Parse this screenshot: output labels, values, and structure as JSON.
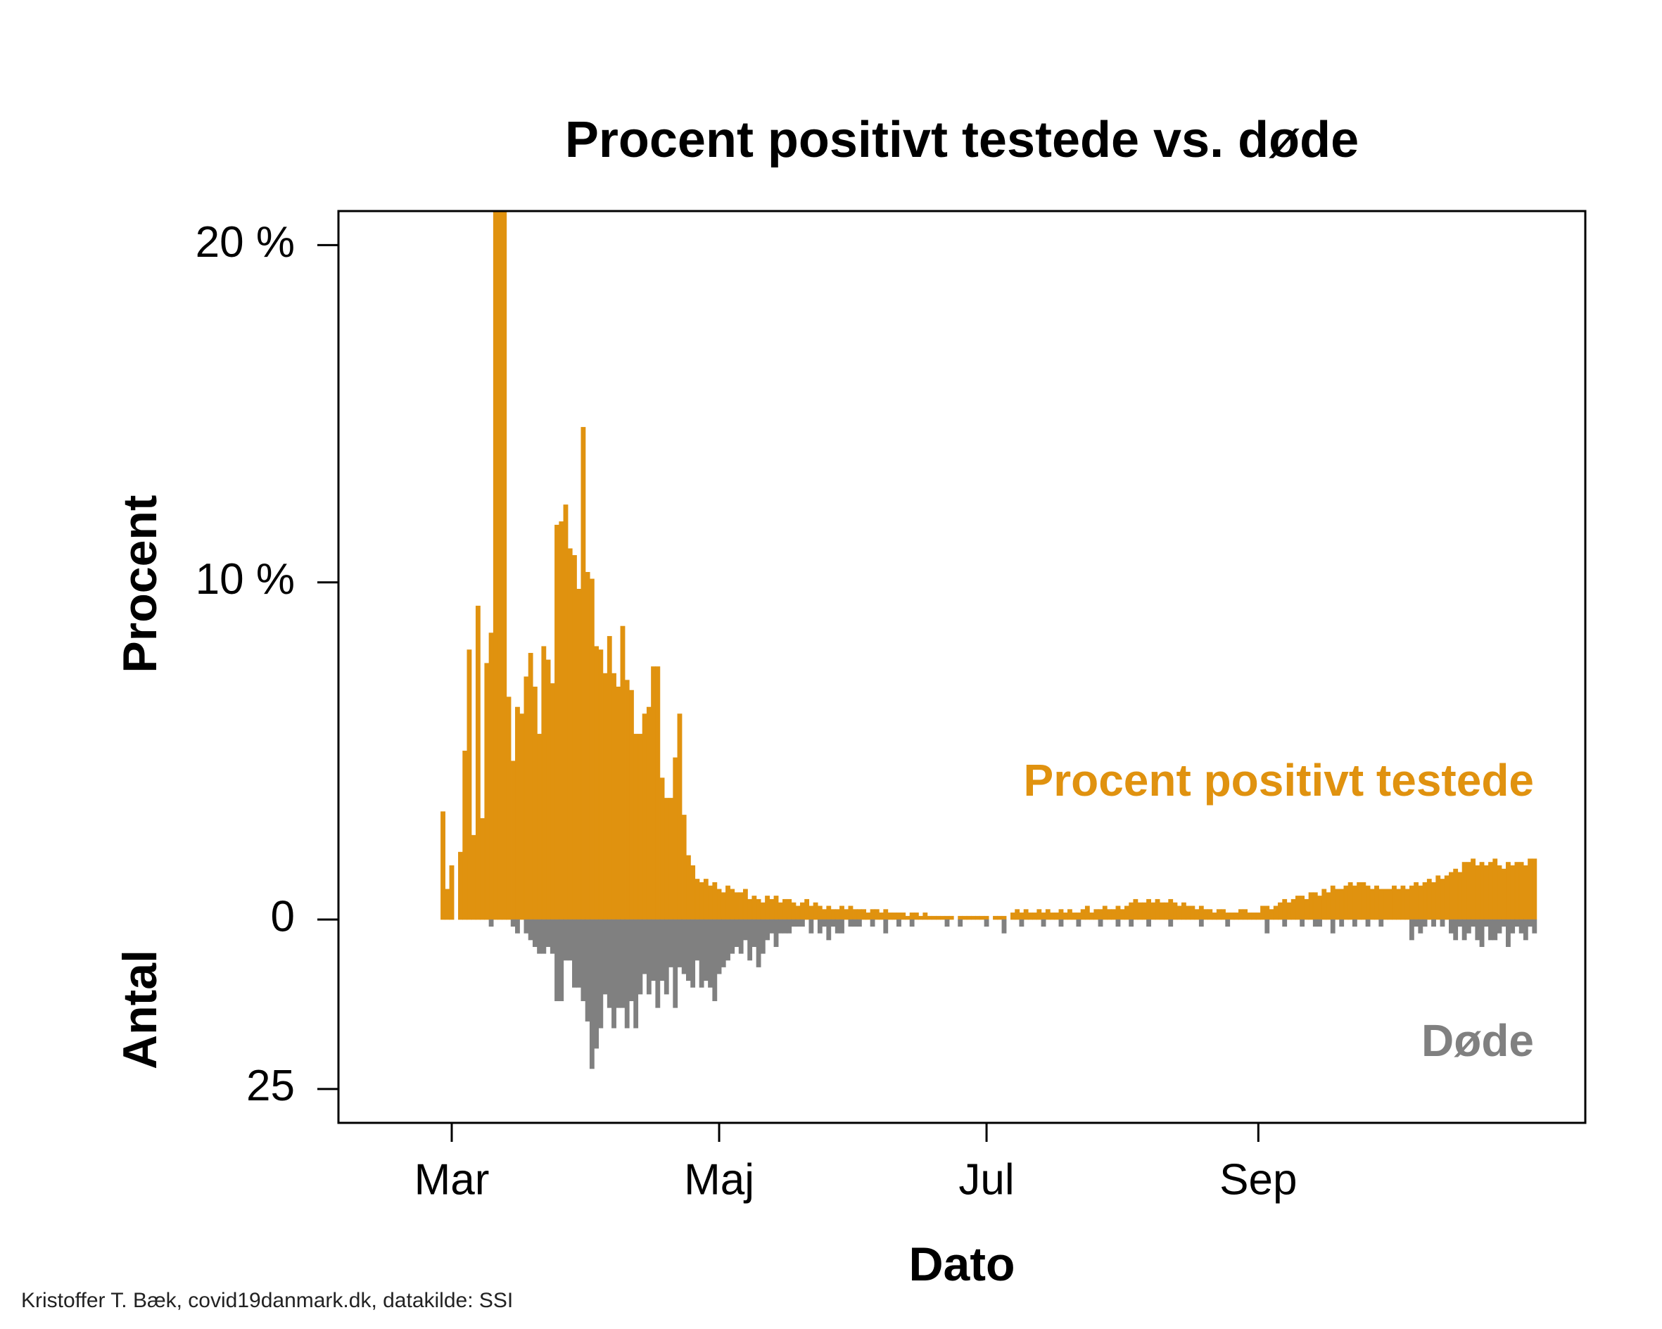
{
  "chart_data": {
    "type": "diverging-bar",
    "title": "Procent positivt testede vs. døde",
    "x_label": "Dato",
    "y_label": "Procent",
    "y2_label": "Antal",
    "source": "Kristoffer T. Bæk, covid19danmark.dk, datakilde: SSI",
    "categories": [
      null,
      null,
      "Mar",
      null,
      null,
      null,
      null,
      null,
      null,
      null,
      null,
      null,
      null,
      null,
      null,
      null,
      null,
      null,
      null,
      null,
      null,
      null,
      null,
      null,
      null,
      null,
      null,
      null,
      null,
      null,
      null,
      null,
      null,
      null,
      null,
      null,
      null,
      null,
      null,
      null,
      null,
      null,
      null,
      null,
      null,
      null,
      null,
      null,
      null,
      null,
      null,
      null,
      null,
      null,
      null,
      null,
      null,
      null,
      null,
      null,
      null,
      null,
      null,
      "Maj",
      null,
      null,
      null,
      null,
      null,
      null,
      null,
      null,
      null,
      null,
      null,
      null,
      null,
      null,
      null,
      null,
      null,
      null,
      null,
      null,
      null,
      null,
      null,
      null,
      null,
      null,
      null,
      null,
      null,
      null,
      null,
      null,
      null,
      null,
      null,
      null,
      null,
      null,
      null,
      null,
      null,
      null,
      null,
      null,
      null,
      null,
      null,
      null,
      null,
      null,
      null,
      null,
      null,
      null,
      null,
      null,
      null,
      null,
      null,
      null,
      "Jul",
      null,
      null,
      null,
      null,
      null,
      null,
      null,
      null,
      null,
      null,
      null,
      null,
      null,
      null,
      null,
      null,
      null,
      null,
      null,
      null,
      null,
      null,
      null,
      null,
      null,
      null,
      null,
      null,
      null,
      null,
      null,
      null,
      null,
      null,
      null,
      null,
      null,
      null,
      null,
      null,
      null,
      null,
      null,
      null,
      null,
      null,
      null,
      null,
      null,
      null,
      null,
      null,
      null,
      null,
      null,
      null,
      null,
      null,
      null,
      null,
      null,
      "Sep",
      null,
      null,
      null,
      null,
      null,
      null,
      null,
      null,
      null,
      null,
      null,
      null,
      null,
      null,
      null,
      null,
      null,
      null,
      null,
      null,
      null,
      null,
      null,
      null,
      null,
      null,
      null,
      null,
      null,
      null,
      null,
      null,
      null,
      null,
      null,
      null,
      null,
      null,
      null,
      null,
      null,
      null,
      null,
      null,
      null,
      null,
      null,
      null,
      null,
      null,
      null,
      null,
      null,
      null,
      null,
      null,
      null,
      null,
      null,
      null,
      null,
      null,
      null
    ],
    "series": [
      {
        "name": "Procent positivt testede",
        "color": "#e0920f",
        "values": [
          3.2,
          0.9,
          1.6,
          0,
          2.0,
          5.0,
          8.0,
          2.5,
          9.3,
          3.0,
          7.6,
          8.5,
          23,
          30,
          25,
          6.6,
          4.7,
          6.3,
          6.1,
          7.2,
          7.9,
          6.9,
          5.5,
          8.1,
          7.7,
          7.0,
          11.7,
          11.8,
          12.3,
          11.0,
          10.8,
          9.8,
          14.6,
          10.3,
          10.1,
          8.1,
          8.0,
          7.3,
          8.4,
          7.3,
          6.9,
          8.7,
          7.1,
          6.8,
          5.5,
          5.5,
          6.1,
          6.3,
          7.5,
          7.5,
          4.2,
          3.6,
          3.6,
          4.8,
          6.1,
          3.1,
          1.9,
          1.6,
          1.2,
          1.1,
          1.2,
          1.0,
          1.1,
          0.9,
          0.8,
          1.0,
          0.9,
          0.8,
          0.8,
          0.9,
          0.6,
          0.7,
          0.6,
          0.5,
          0.7,
          0.6,
          0.7,
          0.5,
          0.6,
          0.6,
          0.5,
          0.4,
          0.5,
          0.6,
          0.4,
          0.5,
          0.4,
          0.3,
          0.4,
          0.3,
          0.3,
          0.4,
          0.3,
          0.4,
          0.3,
          0.3,
          0.3,
          0.2,
          0.3,
          0.3,
          0.2,
          0.3,
          0.2,
          0.2,
          0.2,
          0.2,
          0.1,
          0.2,
          0.2,
          0.1,
          0.2,
          0.1,
          0.1,
          0.1,
          0.1,
          0.1,
          0.1,
          0.0,
          0.1,
          0.1,
          0.1,
          0.1,
          0.1,
          0.1,
          0.1,
          0.0,
          0.1,
          0.1,
          0.1,
          0.0,
          0.2,
          0.3,
          0.2,
          0.3,
          0.2,
          0.2,
          0.3,
          0.2,
          0.3,
          0.2,
          0.2,
          0.3,
          0.2,
          0.3,
          0.2,
          0.2,
          0.3,
          0.4,
          0.2,
          0.3,
          0.3,
          0.4,
          0.3,
          0.3,
          0.4,
          0.3,
          0.4,
          0.5,
          0.6,
          0.5,
          0.5,
          0.6,
          0.5,
          0.6,
          0.5,
          0.5,
          0.6,
          0.5,
          0.4,
          0.5,
          0.4,
          0.4,
          0.3,
          0.4,
          0.3,
          0.3,
          0.2,
          0.3,
          0.3,
          0.2,
          0.2,
          0.2,
          0.3,
          0.3,
          0.2,
          0.2,
          0.2,
          0.4,
          0.4,
          0.3,
          0.4,
          0.5,
          0.6,
          0.5,
          0.6,
          0.7,
          0.7,
          0.6,
          0.8,
          0.8,
          0.7,
          0.9,
          0.8,
          1.0,
          0.9,
          0.9,
          1.0,
          1.1,
          1.0,
          1.1,
          1.1,
          1.0,
          0.9,
          1.0,
          0.9,
          0.9,
          0.9,
          1.0,
          0.9,
          1.0,
          0.9,
          1.0,
          1.1,
          1.0,
          1.1,
          1.2,
          1.1,
          1.3,
          1.2,
          1.3,
          1.4,
          1.5,
          1.4,
          1.7,
          1.7,
          1.8,
          1.6,
          1.7,
          1.6,
          1.7,
          1.8,
          1.6,
          1.5,
          1.7,
          1.6,
          1.7,
          1.7,
          1.6,
          1.8,
          1.8
        ]
      },
      {
        "name": "Døde",
        "color": "#808080",
        "axis": "y2",
        "values": [
          0,
          0,
          0,
          0,
          0,
          0,
          0,
          0,
          0,
          0,
          0,
          1,
          0,
          0,
          0,
          0,
          1,
          2,
          0,
          2,
          3,
          4,
          5,
          5,
          4,
          5,
          12,
          12,
          6,
          6,
          10,
          10,
          12,
          15,
          22,
          19,
          16,
          11,
          13,
          16,
          13,
          13,
          16,
          12,
          16,
          11,
          8,
          11,
          9,
          13,
          9,
          11,
          7,
          13,
          7,
          8,
          9,
          10,
          6,
          10,
          9,
          10,
          12,
          8,
          7,
          6,
          5,
          4,
          5,
          3,
          6,
          4,
          7,
          5,
          3,
          2,
          4,
          2,
          2,
          2,
          1,
          1,
          1,
          0,
          2,
          0,
          2,
          1,
          3,
          1,
          2,
          2,
          0,
          1,
          1,
          1,
          0,
          0,
          1,
          0,
          0,
          2,
          0,
          0,
          1,
          0,
          0,
          1,
          0,
          0,
          0,
          0,
          0,
          0,
          0,
          1,
          0,
          0,
          1,
          0,
          0,
          0,
          0,
          0,
          1,
          0,
          0,
          0,
          2,
          0,
          0,
          0,
          1,
          0,
          0,
          0,
          0,
          1,
          0,
          0,
          0,
          1,
          0,
          0,
          0,
          1,
          0,
          0,
          0,
          0,
          1,
          0,
          0,
          0,
          1,
          0,
          0,
          1,
          0,
          0,
          0,
          1,
          0,
          0,
          0,
          0,
          1,
          0,
          0,
          0,
          0,
          0,
          0,
          1,
          0,
          0,
          0,
          0,
          0,
          1,
          0,
          0,
          0,
          0,
          0,
          0,
          0,
          0,
          2,
          0,
          0,
          0,
          1,
          0,
          0,
          0,
          1,
          0,
          0,
          1,
          1,
          0,
          0,
          2,
          0,
          1,
          0,
          0,
          1,
          0,
          0,
          1,
          0,
          0,
          1,
          0,
          0,
          0,
          0,
          0,
          0,
          3,
          1,
          2,
          1,
          0,
          1,
          0,
          1,
          0,
          2,
          3,
          1,
          3,
          2,
          1,
          3,
          4,
          1,
          3,
          3,
          2,
          1,
          4,
          2,
          1,
          2,
          3,
          1,
          2
        ]
      }
    ],
    "ylim": [
      -6.03,
      21.01
    ],
    "yticks": [
      0,
      {
        "value": 10,
        "label": "10 %"
      },
      {
        "value": 20,
        "label": "20 %"
      }
    ],
    "y2lim": [
      30,
      -104.6
    ],
    "y2ticks": [
      25
    ]
  }
}
